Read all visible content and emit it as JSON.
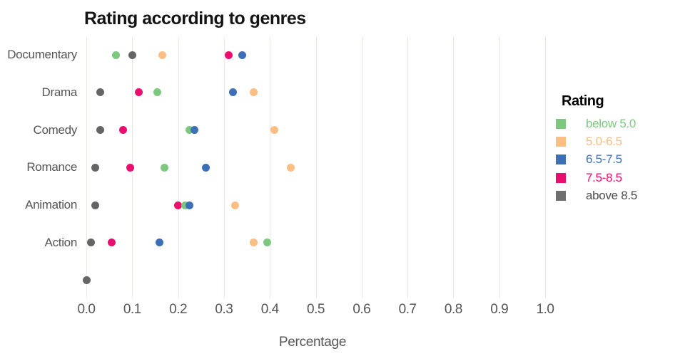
{
  "title": "Rating according to genres",
  "legend": {
    "title": "Rating",
    "items": [
      {
        "label": "below 5.0",
        "color": "#7CC87E",
        "text_color": "#7CC87E"
      },
      {
        "label": "5.0-6.5",
        "color": "#FBBE83",
        "text_color": "#FBBE83"
      },
      {
        "label": "6.5-7.5",
        "color": "#3D6FB6",
        "text_color": "#3D6FB6"
      },
      {
        "label": "7.5-8.5",
        "color": "#EA0F6E",
        "text_color": "#EA0F6E"
      },
      {
        "label": "above 8.5",
        "color": "#6E6E6E",
        "text_color": "#4D4D4D"
      }
    ]
  },
  "chart_data": {
    "type": "scatter",
    "orientation": "horizontal",
    "title": "Rating according to genres",
    "xlabel": "Percentage",
    "ylabel": "",
    "xlim": [
      0.0,
      1.0
    ],
    "xtick_labels": [
      "0.0",
      "0.1",
      "0.2",
      "0.3",
      "0.4",
      "0.5",
      "0.6",
      "0.7",
      "0.8",
      "0.9",
      "1.0"
    ],
    "grid": "vertical-only",
    "legend_title": "Rating",
    "legend_position": "right",
    "categories": [
      "Documentary",
      "Drama",
      "Comedy",
      "Romance",
      "Animation",
      "Action",
      ""
    ],
    "series": [
      {
        "name": "below 5.0",
        "color": "#7CC87E",
        "values": [
          0.065,
          0.155,
          0.225,
          0.17,
          0.215,
          0.395,
          null
        ]
      },
      {
        "name": "5.0-6.5",
        "color": "#FBBE83",
        "values": [
          0.165,
          0.365,
          0.41,
          0.445,
          0.325,
          0.365,
          null
        ]
      },
      {
        "name": "6.5-7.5",
        "color": "#3D6FB6",
        "values": [
          0.34,
          0.32,
          0.235,
          0.26,
          0.225,
          0.16,
          null
        ]
      },
      {
        "name": "7.5-8.5",
        "color": "#EA0F6E",
        "values": [
          0.31,
          0.115,
          0.08,
          0.095,
          0.2,
          0.055,
          null
        ]
      },
      {
        "name": "above 8.5",
        "color": "#656565",
        "values": [
          0.1,
          0.03,
          0.03,
          0.02,
          0.02,
          0.01,
          0.0
        ]
      }
    ]
  }
}
